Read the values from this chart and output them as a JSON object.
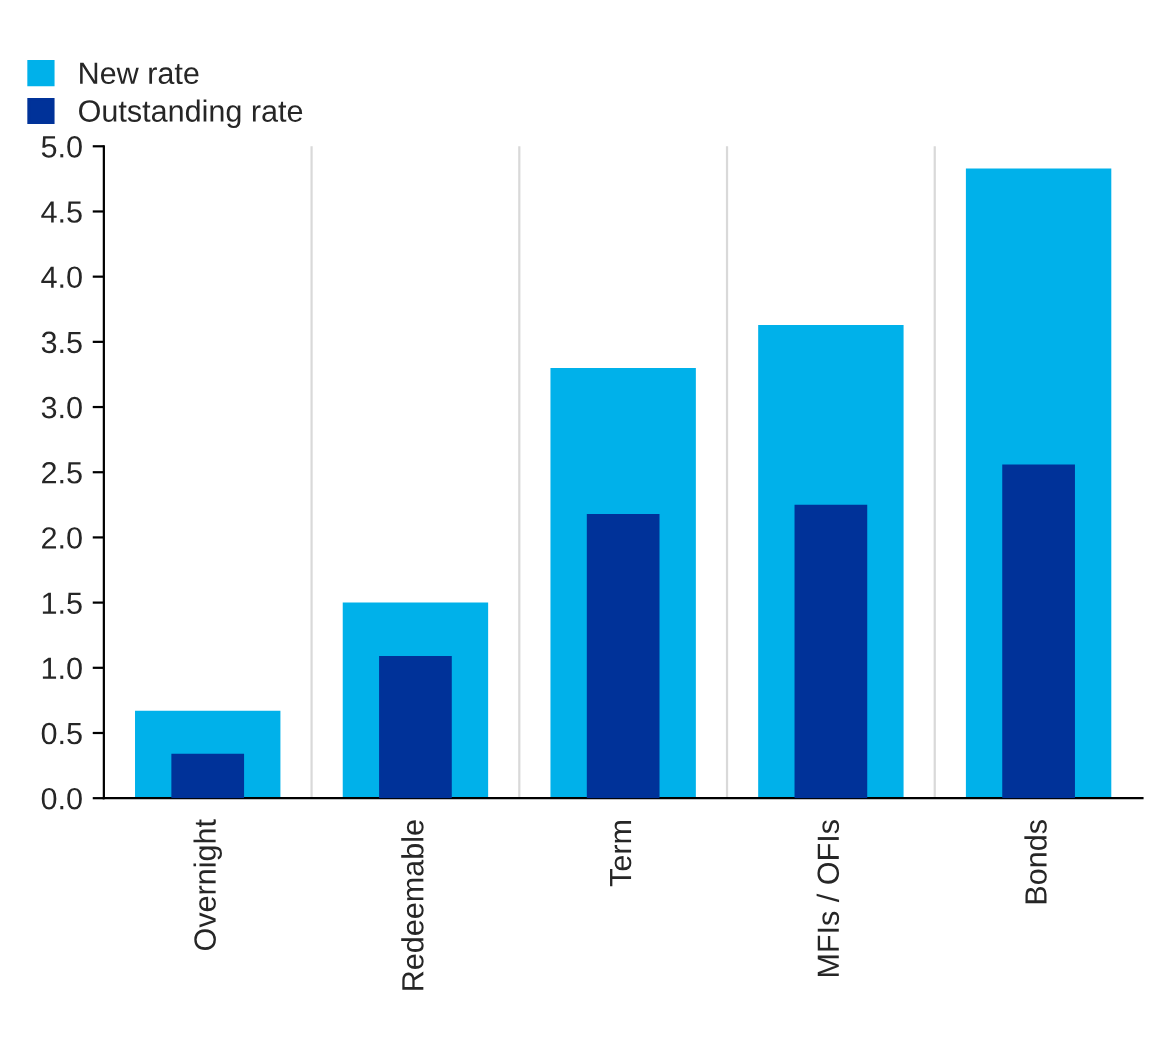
{
  "chart_data": {
    "type": "bar",
    "categories": [
      "Overnight",
      "Redeemable",
      "Term",
      "MFIs / OFIs",
      "Bonds"
    ],
    "series": [
      {
        "name": "New rate",
        "color": "#00b1ea",
        "values": [
          0.67,
          1.5,
          3.3,
          3.63,
          4.83
        ]
      },
      {
        "name": "Outstanding rate",
        "color": "#003299",
        "values": [
          0.34,
          1.09,
          2.18,
          2.25,
          2.56
        ]
      }
    ],
    "ylim": [
      0,
      5
    ],
    "yticks": [
      {
        "value": 0,
        "label": "0.0"
      },
      {
        "value": 0.5,
        "label": "0.5"
      },
      {
        "value": 1,
        "label": "1.0"
      },
      {
        "value": 1.5,
        "label": "1.5"
      },
      {
        "value": 2,
        "label": "2.0"
      },
      {
        "value": 2.5,
        "label": "2.5"
      },
      {
        "value": 3,
        "label": "3.0"
      },
      {
        "value": 3.5,
        "label": "3.5"
      },
      {
        "value": 4,
        "label": "4.0"
      },
      {
        "value": 4.5,
        "label": "4.5"
      },
      {
        "value": 5,
        "label": "5.0"
      }
    ],
    "grid": "x",
    "legend": "top left"
  }
}
